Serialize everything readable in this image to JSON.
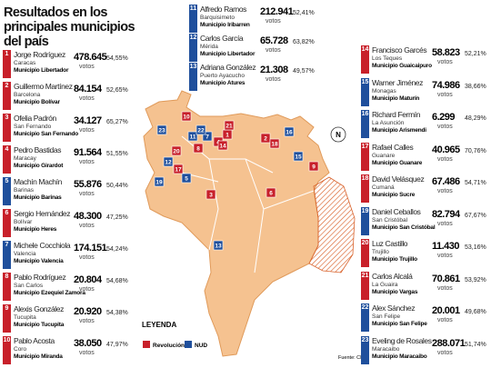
{
  "header": {
    "title": "Resultados en los principales municipios del país"
  },
  "legend": {
    "title": "LEYENDA",
    "items": [
      {
        "name": "Revolución",
        "color": "#c8202a"
      },
      {
        "name": "NUD",
        "color": "#1f4f9c"
      }
    ]
  },
  "source": "Fuente: CNE",
  "compass": "N",
  "entries": [
    {
      "number": "1",
      "name": "Jorge Rodríguez",
      "city": "Caracas",
      "municipality": "Municipio Libertador",
      "votes": "478.645",
      "votes_label": "votos",
      "percent": "54,55%",
      "color": "#c8202a"
    },
    {
      "number": "2",
      "name": "Guillermo Martínez",
      "city": "Barcelona",
      "municipality": "Municipio Bolívar",
      "votes": "84.154",
      "votes_label": "votos",
      "percent": "52,65%",
      "color": "#c8202a"
    },
    {
      "number": "3",
      "name": "Ofelia Padrón",
      "city": "San Fernando",
      "municipality": "Municipio San Fernando",
      "votes": "34.127",
      "votes_label": "votos",
      "percent": "65,27%",
      "color": "#c8202a"
    },
    {
      "number": "4",
      "name": "Pedro Bastidas",
      "city": "Maracay",
      "municipality": "Municipio Girardot",
      "votes": "91.564",
      "votes_label": "votos",
      "percent": "51,55%",
      "color": "#c8202a"
    },
    {
      "number": "5",
      "name": "Machín Machín",
      "city": "Barinas",
      "municipality": "Municipio Barinas",
      "votes": "55.876",
      "votes_label": "votos",
      "percent": "50,44%",
      "color": "#1f4f9c"
    },
    {
      "number": "6",
      "name": "Sergio Hernández",
      "city": "Bolívar",
      "municipality": "Municipio Heres",
      "votes": "48.300",
      "votes_label": "votos",
      "percent": "47,25%",
      "color": "#c8202a"
    },
    {
      "number": "7",
      "name": "Michele Cocchiola",
      "city": "Valencia",
      "municipality": "Municipio Valencia",
      "votes": "174.151",
      "votes_label": "votos",
      "percent": "54,24%",
      "color": "#1f4f9c"
    },
    {
      "number": "8",
      "name": "Pablo Rodríguez",
      "city": "San Carlos",
      "municipality": "Municipio Ezequiel Zamora",
      "votes": "20.804",
      "votes_label": "votos",
      "percent": "54,68%",
      "color": "#c8202a"
    },
    {
      "number": "9",
      "name": "Alexis González",
      "city": "Tucupita",
      "municipality": "Municipio Tucupita",
      "votes": "20.920",
      "votes_label": "votos",
      "percent": "54,38%",
      "color": "#c8202a"
    },
    {
      "number": "10",
      "name": "Pablo Acosta",
      "city": "Coro",
      "municipality": "Municipio Miranda",
      "votes": "38.050",
      "votes_label": "votos",
      "percent": "47,97%",
      "color": "#c8202a"
    },
    {
      "number": "11",
      "name": "Alfredo Ramos",
      "city": "Barquisimeto",
      "municipality": "Municipio Iribarren",
      "votes": "212.941",
      "votes_label": "votos",
      "percent": "52,41%",
      "color": "#1f4f9c"
    },
    {
      "number": "12",
      "name": "Carlos García",
      "city": "Mérida",
      "municipality": "Municipio Libertador",
      "votes": "65.728",
      "votes_label": "votos",
      "percent": "63,82%",
      "color": "#1f4f9c"
    },
    {
      "number": "13",
      "name": "Adriana González",
      "city": "Puerto Ayacucho",
      "municipality": "Municipio Atures",
      "votes": "21.308",
      "votes_label": "votos",
      "percent": "49,57%",
      "color": "#1f4f9c"
    },
    {
      "number": "14",
      "name": "Francisco Garcés",
      "city": "Los Teques",
      "municipality": "Municipio Guaicaipuro",
      "votes": "58.823",
      "votes_label": "votos",
      "percent": "52,21%",
      "color": "#c8202a"
    },
    {
      "number": "15",
      "name": "Warner Jiménez",
      "city": "Monagas",
      "municipality": "Municipio Maturín",
      "votes": "74.986",
      "votes_label": "votos",
      "percent": "38,66%",
      "color": "#1f4f9c"
    },
    {
      "number": "16",
      "name": "Richard Fermín",
      "city": "La Asunción",
      "municipality": "Municipio Arismendi",
      "votes": "6.299",
      "votes_label": "votos",
      "percent": "48,29%",
      "color": "#1f4f9c"
    },
    {
      "number": "17",
      "name": "Rafael Calles",
      "city": "Guanare",
      "municipality": "Municipio Guanare",
      "votes": "40.965",
      "votes_label": "votos",
      "percent": "70,76%",
      "color": "#c8202a"
    },
    {
      "number": "18",
      "name": "David Velásquez",
      "city": "Cumaná",
      "municipality": "Municipio Sucre",
      "votes": "67.486",
      "votes_label": "votos",
      "percent": "54,71%",
      "color": "#c8202a"
    },
    {
      "number": "19",
      "name": "Daniel Ceballos",
      "city": "San Cristóbal",
      "municipality": "Municipio San Cristóbal",
      "votes": "82.794",
      "votes_label": "votos",
      "percent": "67,67%",
      "color": "#1f4f9c"
    },
    {
      "number": "20",
      "name": "Luz Castillo",
      "city": "Trujillo",
      "municipality": "Municipio Trujillo",
      "votes": "11.430",
      "votes_label": "votos",
      "percent": "53,16%",
      "color": "#c8202a"
    },
    {
      "number": "21",
      "name": "Carlos Alcalá",
      "city": "La Guaira",
      "municipality": "Municipio Vargas",
      "votes": "70.861",
      "votes_label": "votos",
      "percent": "53,92%",
      "color": "#c8202a"
    },
    {
      "number": "22",
      "name": "Alex Sánchez",
      "city": "San Felipe",
      "municipality": "Municipio San Felipe",
      "votes": "20.001",
      "votes_label": "votos",
      "percent": "49,68%",
      "color": "#1f4f9c"
    },
    {
      "number": "23",
      "name": "Eveling de Rosales",
      "city": "Maracaibo",
      "municipality": "Municipio Maracaibo",
      "votes": "288.071",
      "votes_label": "votos",
      "percent": "51,74%",
      "color": "#1f4f9c"
    }
  ]
}
